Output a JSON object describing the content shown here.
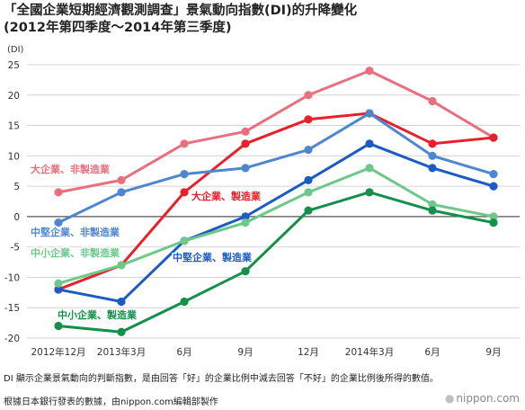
{
  "title_line1": "「全國企業短期經濟觀測調查」景氣動向指數(DI)的升降變化",
  "title_line2": "(2012年第四季度〜2014年第三季度)",
  "note": "DI 顯示企業景氣動向的判斷指數，是由回答「好」的企業比例中減去回答「不好」的企業比例後所得的數值。",
  "source": "根據日本銀行發表的數據，由nippon.com編輯部製作",
  "brand": "nippon.com",
  "chart_data": {
    "type": "line",
    "ylabel": "(DI)",
    "ylim": [
      -20,
      25
    ],
    "yticks": [
      25,
      20,
      15,
      10,
      5,
      0,
      -5,
      -10,
      -15,
      -20
    ],
    "categories": [
      "2012年12月",
      "2013年3月",
      "6月",
      "9月",
      "12月",
      "2014年3月",
      "6月",
      "9月"
    ],
    "grid": true,
    "series": [
      {
        "name": "大企業、非製造業",
        "color": "#e8707e",
        "values": [
          4,
          6,
          12,
          14,
          20,
          24,
          19,
          13
        ]
      },
      {
        "name": "大企業、製造業",
        "color": "#e8202a",
        "values": [
          -12,
          -8,
          4,
          12,
          16,
          17,
          12,
          13
        ]
      },
      {
        "name": "中堅企業、非製造業",
        "color": "#4f86d0",
        "values": [
          -1,
          4,
          7,
          8,
          11,
          17,
          10,
          7
        ]
      },
      {
        "name": "中堅企業、製造業",
        "color": "#1a5bc4",
        "values": [
          -12,
          -14,
          -4,
          0,
          6,
          12,
          8,
          5
        ]
      },
      {
        "name": "中小企業、非製造業",
        "color": "#6cc98a",
        "values": [
          -11,
          -8,
          -4,
          -1,
          4,
          8,
          2,
          0
        ]
      },
      {
        "name": "中小企業、製造業",
        "color": "#14904a",
        "values": [
          -18,
          -19,
          -14,
          -9,
          1,
          4,
          1,
          -1
        ]
      }
    ]
  }
}
